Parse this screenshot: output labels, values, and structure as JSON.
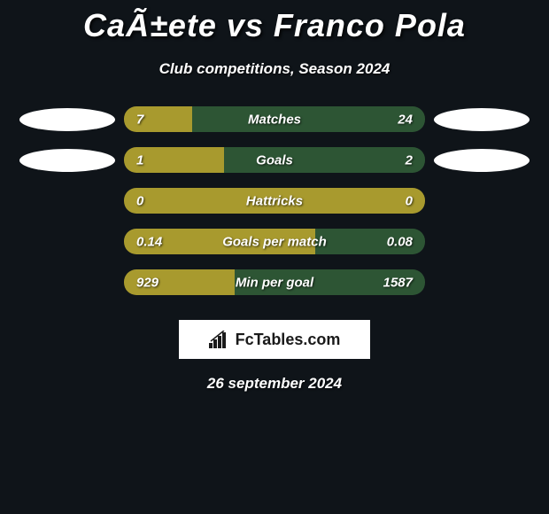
{
  "title": "CaÃ±ete vs Franco Pola",
  "subtitle": "Club competitions, Season 2024",
  "colors": {
    "background": "#0f1419",
    "left_bar": "#a89a2e",
    "right_bar": "#2d5534",
    "ellipse": "#ffffff",
    "text": "#ffffff"
  },
  "stats": [
    {
      "label": "Matches",
      "left_value": "7",
      "right_value": "24",
      "left_pct": 22.6,
      "show_ellipses": true
    },
    {
      "label": "Goals",
      "left_value": "1",
      "right_value": "2",
      "left_pct": 33.3,
      "show_ellipses": true
    },
    {
      "label": "Hattricks",
      "left_value": "0",
      "right_value": "0",
      "left_pct": 100,
      "show_ellipses": false
    },
    {
      "label": "Goals per match",
      "left_value": "0.14",
      "right_value": "0.08",
      "left_pct": 63.6,
      "show_ellipses": false
    },
    {
      "label": "Min per goal",
      "left_value": "929",
      "right_value": "1587",
      "left_pct": 36.9,
      "show_ellipses": false
    }
  ],
  "logo_text": "FcTables.com",
  "date": "26 september 2024"
}
